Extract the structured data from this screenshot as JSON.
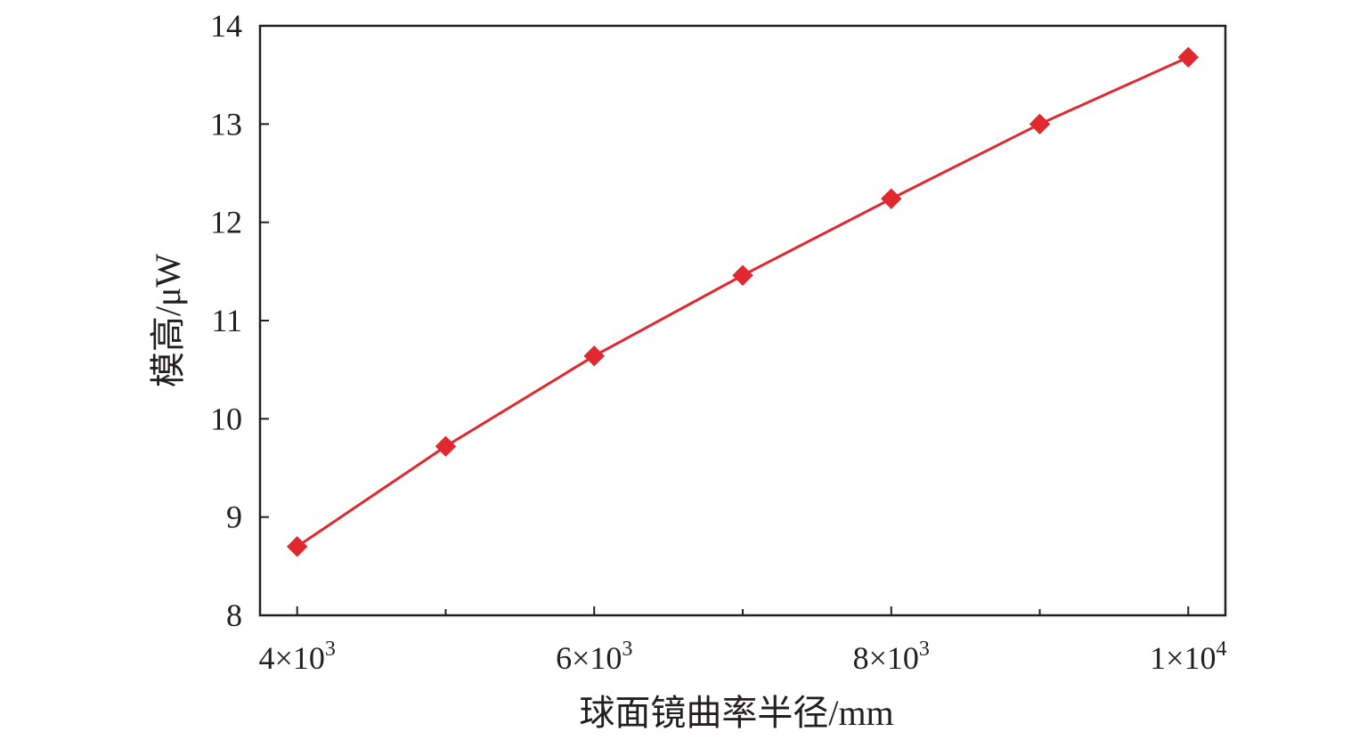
{
  "chart_data": {
    "type": "line",
    "title": "",
    "xlabel": "球面镜曲率半径/mm",
    "ylabel": "模高/μW",
    "xlim": [
      3750,
      10250
    ],
    "ylim": [
      8,
      14
    ],
    "x_ticks": [
      {
        "value": 4000,
        "mantissa": "4×10",
        "exponent": "3"
      },
      {
        "value": 6000,
        "mantissa": "6×10",
        "exponent": "3"
      },
      {
        "value": 8000,
        "mantissa": "8×10",
        "exponent": "3"
      },
      {
        "value": 10000,
        "mantissa": "1×10",
        "exponent": "4"
      }
    ],
    "x_minor_ticks": [
      5000,
      7000,
      9000
    ],
    "y_ticks": [
      8,
      9,
      10,
      11,
      12,
      13,
      14
    ],
    "grid": false,
    "legend": "none",
    "series": [
      {
        "color": "#e0282e",
        "marker": "diamond",
        "x": [
          4000,
          5000,
          6000,
          7000,
          8000,
          9000,
          10000
        ],
        "y": [
          8.7,
          9.72,
          10.64,
          11.46,
          12.24,
          13.0,
          13.68
        ]
      }
    ]
  }
}
